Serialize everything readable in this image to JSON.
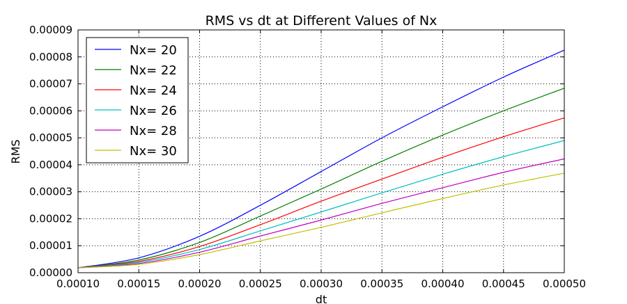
{
  "chart_data": {
    "type": "line",
    "title": "RMS vs dt at Different Values of Nx",
    "xlabel": "dt",
    "ylabel": "RMS",
    "xlim": [
      0.0001,
      0.0005
    ],
    "ylim": [
      0,
      9e-05
    ],
    "xticks": [
      0.0001,
      0.00015,
      0.0002,
      0.00025,
      0.0003,
      0.00035,
      0.0004,
      0.00045,
      0.0005
    ],
    "xtick_labels": [
      "0.00010",
      "0.00015",
      "0.00020",
      "0.00025",
      "0.00030",
      "0.00035",
      "0.00040",
      "0.00045",
      "0.00050"
    ],
    "yticks": [
      0,
      1e-05,
      2e-05,
      3e-05,
      4e-05,
      5e-05,
      6e-05,
      7e-05,
      8e-05,
      9e-05
    ],
    "ytick_labels": [
      "0.00000",
      "0.00001",
      "0.00002",
      "0.00003",
      "0.00004",
      "0.00005",
      "0.00006",
      "0.00007",
      "0.00008",
      "0.00009"
    ],
    "grid": true,
    "legend_position": "top-left",
    "x": [
      0.0001,
      0.00015,
      0.0002,
      0.00025,
      0.0003,
      0.00035,
      0.0004,
      0.00045,
      0.0005
    ],
    "series": [
      {
        "name": "Nx= 20",
        "color": "#0000ff",
        "values": [
          1.8e-06,
          5.5e-06,
          1.35e-05,
          2.5e-05,
          3.75e-05,
          5e-05,
          6.15e-05,
          7.25e-05,
          8.25e-05
        ]
      },
      {
        "name": "Nx= 22",
        "color": "#008000",
        "values": [
          1.8e-06,
          4.7e-06,
          1.12e-05,
          2.1e-05,
          3.1e-05,
          4.13e-05,
          5.1e-05,
          6e-05,
          6.84e-05
        ]
      },
      {
        "name": "Nx= 24",
        "color": "#ff0000",
        "values": [
          1.8e-06,
          4.2e-06,
          9.7e-06,
          1.78e-05,
          2.65e-05,
          3.47e-05,
          4.28e-05,
          5.04e-05,
          5.74e-05
        ]
      },
      {
        "name": "Nx= 26",
        "color": "#00bfbf",
        "values": [
          1.8e-06,
          3.8e-06,
          8.6e-06,
          1.55e-05,
          2.25e-05,
          2.96e-05,
          3.65e-05,
          4.3e-05,
          4.9e-05
        ]
      },
      {
        "name": "Nx= 28",
        "color": "#bf00bf",
        "values": [
          1.8e-06,
          3.4e-06,
          7.6e-06,
          1.36e-05,
          1.95e-05,
          2.57e-05,
          3.15e-05,
          3.72e-05,
          4.22e-05
        ]
      },
      {
        "name": "Nx= 30",
        "color": "#bfbf00",
        "values": [
          1.8e-06,
          3.1e-06,
          6.7e-06,
          1.18e-05,
          1.68e-05,
          2.22e-05,
          2.75e-05,
          3.25e-05,
          3.69e-05
        ]
      }
    ]
  }
}
